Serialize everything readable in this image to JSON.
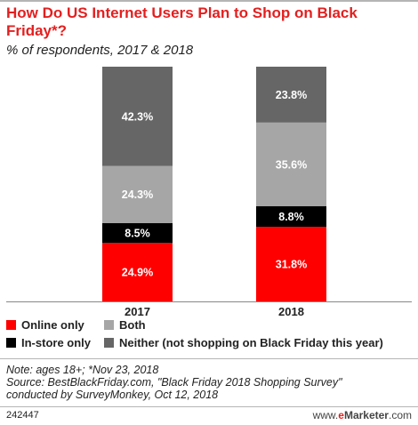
{
  "header": {
    "title": "How Do US Internet Users Plan to Shop on Black Friday*?",
    "subtitle": "% of respondents, 2017 & 2018"
  },
  "chart_data": {
    "type": "bar",
    "stacked": true,
    "categories": [
      "2017",
      "2018"
    ],
    "series": [
      {
        "name": "Online only",
        "values": [
          24.9,
          31.8
        ],
        "color": "#ff0000",
        "labels": [
          "24.9%",
          "31.8%"
        ]
      },
      {
        "name": "In-store only",
        "values": [
          8.5,
          8.8
        ],
        "color": "#000000",
        "labels": [
          "8.5%",
          "8.8%"
        ]
      },
      {
        "name": "Both",
        "values": [
          24.3,
          35.6
        ],
        "color": "#a6a6a6",
        "labels": [
          "24.3%",
          "35.6%"
        ]
      },
      {
        "name": "Neither (not shopping on Black Friday this year)",
        "values": [
          42.3,
          23.8
        ],
        "color": "#666666",
        "labels": [
          "42.3%",
          "23.8%"
        ]
      }
    ],
    "ylim": [
      0,
      100
    ],
    "grid": false
  },
  "legend": {
    "items": [
      {
        "label": "Online only",
        "color": "#ff0000"
      },
      {
        "label": "Both",
        "color": "#a6a6a6"
      },
      {
        "label": "In-store only",
        "color": "#000000"
      },
      {
        "label": "Neither (not shopping on Black Friday this year)",
        "color": "#666666"
      }
    ]
  },
  "footer": {
    "note": "Note: ages 18+; *Nov 23, 2018",
    "source_line1": "Source: BestBlackFriday.com, \"Black Friday 2018 Shopping Survey\"",
    "source_line2": "conducted by SurveyMonkey, Oct 12, 2018",
    "chart_id": "242447",
    "brand_prefix": "www.",
    "brand_e": "e",
    "brand_rest": "Marketer",
    "brand_suffix": ".com"
  }
}
